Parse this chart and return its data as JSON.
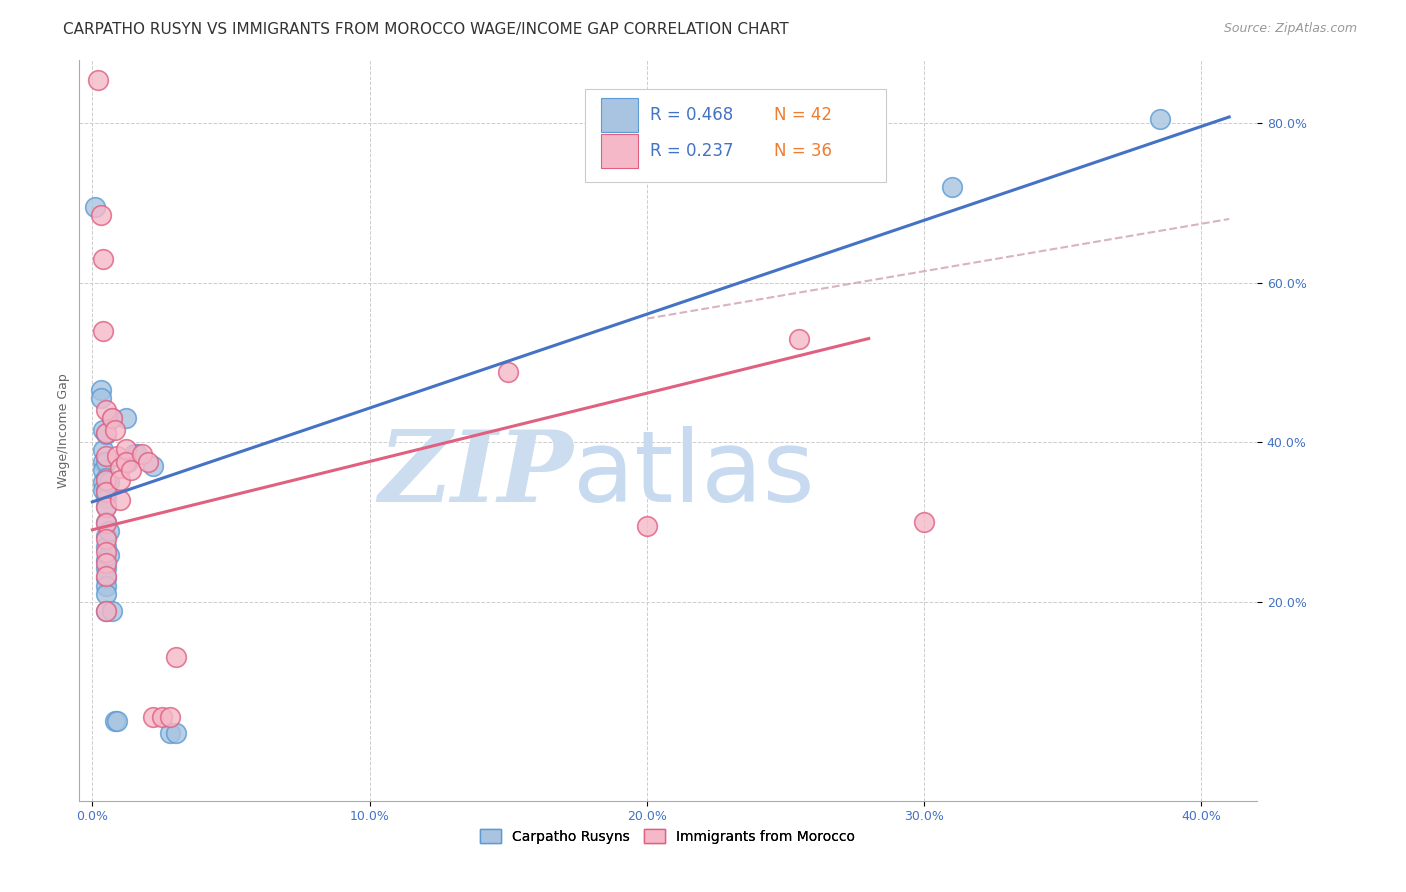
{
  "title": "CARPATHO RUSYN VS IMMIGRANTS FROM MOROCCO WAGE/INCOME GAP CORRELATION CHART",
  "source": "Source: ZipAtlas.com",
  "ylabel": "Wage/Income Gap",
  "x_ticks": [
    "0.0%",
    "10.0%",
    "20.0%",
    "30.0%",
    "40.0%"
  ],
  "x_tick_vals": [
    0.0,
    0.1,
    0.2,
    0.3,
    0.4
  ],
  "y_ticks_right": [
    "20.0%",
    "40.0%",
    "60.0%",
    "80.0%"
  ],
  "y_tick_vals": [
    0.2,
    0.4,
    0.6,
    0.8
  ],
  "xlim": [
    -0.005,
    0.42
  ],
  "ylim": [
    -0.05,
    0.88
  ],
  "blue_scatter": [
    [
      0.001,
      0.695
    ],
    [
      0.003,
      0.465
    ],
    [
      0.003,
      0.455
    ],
    [
      0.004,
      0.415
    ],
    [
      0.004,
      0.39
    ],
    [
      0.004,
      0.375
    ],
    [
      0.004,
      0.365
    ],
    [
      0.004,
      0.35
    ],
    [
      0.004,
      0.34
    ],
    [
      0.005,
      0.41
    ],
    [
      0.005,
      0.375
    ],
    [
      0.005,
      0.355
    ],
    [
      0.005,
      0.34
    ],
    [
      0.005,
      0.33
    ],
    [
      0.005,
      0.32
    ],
    [
      0.005,
      0.3
    ],
    [
      0.005,
      0.282
    ],
    [
      0.005,
      0.268
    ],
    [
      0.005,
      0.252
    ],
    [
      0.005,
      0.242
    ],
    [
      0.005,
      0.23
    ],
    [
      0.005,
      0.22
    ],
    [
      0.005,
      0.21
    ],
    [
      0.005,
      0.188
    ],
    [
      0.006,
      0.35
    ],
    [
      0.006,
      0.288
    ],
    [
      0.006,
      0.258
    ],
    [
      0.007,
      0.43
    ],
    [
      0.007,
      0.188
    ],
    [
      0.008,
      0.05
    ],
    [
      0.009,
      0.05
    ],
    [
      0.012,
      0.43
    ],
    [
      0.013,
      0.375
    ],
    [
      0.015,
      0.385
    ],
    [
      0.016,
      0.385
    ],
    [
      0.022,
      0.37
    ],
    [
      0.028,
      0.035
    ],
    [
      0.03,
      0.035
    ],
    [
      0.31,
      0.72
    ],
    [
      0.385,
      0.805
    ]
  ],
  "pink_scatter": [
    [
      0.002,
      0.855
    ],
    [
      0.003,
      0.685
    ],
    [
      0.004,
      0.63
    ],
    [
      0.004,
      0.54
    ],
    [
      0.005,
      0.44
    ],
    [
      0.005,
      0.412
    ],
    [
      0.005,
      0.382
    ],
    [
      0.005,
      0.352
    ],
    [
      0.005,
      0.338
    ],
    [
      0.005,
      0.318
    ],
    [
      0.005,
      0.298
    ],
    [
      0.005,
      0.278
    ],
    [
      0.005,
      0.262
    ],
    [
      0.005,
      0.248
    ],
    [
      0.005,
      0.232
    ],
    [
      0.005,
      0.188
    ],
    [
      0.007,
      0.43
    ],
    [
      0.008,
      0.415
    ],
    [
      0.009,
      0.382
    ],
    [
      0.01,
      0.368
    ],
    [
      0.01,
      0.352
    ],
    [
      0.01,
      0.328
    ],
    [
      0.012,
      0.392
    ],
    [
      0.012,
      0.375
    ],
    [
      0.014,
      0.365
    ],
    [
      0.018,
      0.385
    ],
    [
      0.02,
      0.375
    ],
    [
      0.022,
      0.055
    ],
    [
      0.025,
      0.055
    ],
    [
      0.028,
      0.055
    ],
    [
      0.03,
      0.13
    ],
    [
      0.15,
      0.488
    ],
    [
      0.2,
      0.295
    ],
    [
      0.255,
      0.53
    ],
    [
      0.3,
      0.3
    ]
  ],
  "blue_line": {
    "x": [
      0.0,
      0.41
    ],
    "y": [
      0.325,
      0.808
    ]
  },
  "pink_line": {
    "x": [
      0.0,
      0.28
    ],
    "y": [
      0.29,
      0.53
    ]
  },
  "pink_dashed": {
    "x": [
      0.2,
      0.41
    ],
    "y": [
      0.555,
      0.68
    ]
  },
  "scatter_size": 200,
  "blue_color": "#a8c4e0",
  "blue_edge": "#5b9bd5",
  "pink_color": "#f4b8c8",
  "pink_edge": "#e06080",
  "background_color": "#ffffff",
  "grid_color": "#c8c8c8",
  "watermark_zip": "ZIP",
  "watermark_atlas": "atlas",
  "watermark_color_zip": "#ccddf0",
  "watermark_color_atlas": "#c8daf0",
  "title_fontsize": 11,
  "axis_label_fontsize": 9,
  "tick_fontsize": 9,
  "source_fontsize": 9,
  "legend_r_color": "#4472c4",
  "legend_n_color": "#ed7d31",
  "legend_box_color": "#f8f8f8",
  "legend_border_color": "#cccccc"
}
